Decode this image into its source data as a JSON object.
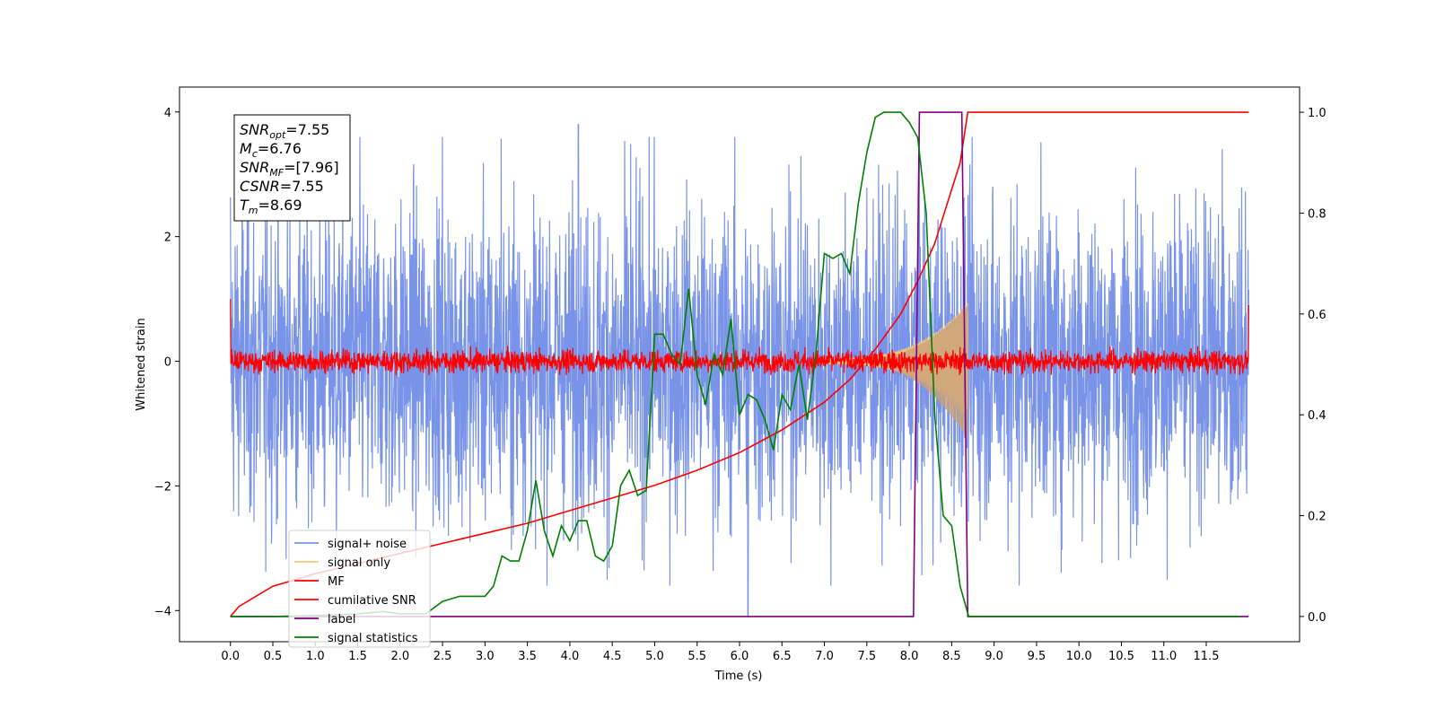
{
  "chart_data": {
    "type": "line",
    "xlabel": "Time (s)",
    "ylabel": "Whitened strain",
    "xlim": [
      -0.6,
      12.6
    ],
    "ylim": [
      -4.5,
      4.4
    ],
    "y2lim": [
      -0.05,
      1.05
    ],
    "x_ticks": [
      "0.0",
      "0.5",
      "1.0",
      "1.5",
      "2.0",
      "2.5",
      "3.0",
      "3.5",
      "4.0",
      "4.5",
      "5.0",
      "5.5",
      "6.0",
      "6.5",
      "7.0",
      "7.5",
      "8.0",
      "8.5",
      "9.0",
      "9.5",
      "10.0",
      "10.5",
      "11.0",
      "11.5"
    ],
    "y_ticks": [
      "4",
      "2",
      "0",
      "−2",
      "−4"
    ],
    "y2_ticks": [
      "1.0",
      "0.8",
      "0.6",
      "0.4",
      "0.2",
      "0.0"
    ],
    "legend": {
      "placement": "lower-left",
      "entries": [
        "signal+ noise",
        "signal only",
        "MF",
        "cumilative SNR",
        "label",
        "signal statistics"
      ]
    },
    "annotation": {
      "lines": [
        {
          "sym": "SNR",
          "sub": "opt",
          "val": "=7.55"
        },
        {
          "sym": "M",
          "sub": "c",
          "val": "=6.76"
        },
        {
          "sym": "SNR",
          "sub": "MF",
          "val": "=[7.96]"
        },
        {
          "sym": "CSNR",
          "sub": "",
          "val": "=7.55"
        },
        {
          "sym": "T",
          "sub": "m",
          "val": "=8.69"
        }
      ]
    },
    "series": [
      {
        "name": "signal+ noise",
        "axis": "left",
        "color": "#7893e8",
        "kind": "noise",
        "x_range": [
          0.0,
          12.0
        ],
        "typical_amplitude": 2.0,
        "peak": 3.8,
        "min": -4.1
      },
      {
        "name": "signal only",
        "axis": "left",
        "color": "#f5c77e",
        "kind": "chirp",
        "x_range": [
          7.0,
          8.69
        ],
        "peak": 0.9
      },
      {
        "name": "MF",
        "axis": "left",
        "color": "#ff0000",
        "kind": "noise",
        "x_range": [
          0.0,
          12.0
        ],
        "typical_amplitude": 0.2,
        "start": 1.0,
        "end": 0.9
      },
      {
        "name": "cumilative SNR",
        "axis": "right",
        "color": "#ff0000",
        "x": [
          0.0,
          0.1,
          0.3,
          0.5,
          1.0,
          1.5,
          2.0,
          2.5,
          3.0,
          3.5,
          4.0,
          4.5,
          5.0,
          5.5,
          6.0,
          6.5,
          7.0,
          7.3,
          7.6,
          7.9,
          8.1,
          8.3,
          8.45,
          8.6,
          8.69,
          9.0,
          10.0,
          11.0,
          12.0
        ],
        "y": [
          0.0,
          0.02,
          0.04,
          0.06,
          0.085,
          0.105,
          0.125,
          0.145,
          0.165,
          0.185,
          0.21,
          0.235,
          0.26,
          0.29,
          0.325,
          0.37,
          0.425,
          0.47,
          0.53,
          0.6,
          0.665,
          0.74,
          0.82,
          0.9,
          1.0,
          1.0,
          1.0,
          1.0,
          1.0
        ]
      },
      {
        "name": "label",
        "axis": "right",
        "color": "#800080",
        "x": [
          0.0,
          8.05,
          8.12,
          8.62,
          8.69,
          12.0
        ],
        "y": [
          0.0,
          0.0,
          1.0,
          1.0,
          0.0,
          0.0
        ]
      },
      {
        "name": "signal statistics",
        "axis": "right",
        "color": "#008000",
        "x": [
          0.0,
          0.5,
          1.0,
          1.5,
          1.8,
          2.0,
          2.3,
          2.5,
          2.7,
          3.0,
          3.1,
          3.2,
          3.3,
          3.4,
          3.5,
          3.6,
          3.7,
          3.8,
          3.9,
          4.0,
          4.1,
          4.2,
          4.3,
          4.4,
          4.5,
          4.6,
          4.7,
          4.8,
          4.9,
          5.0,
          5.1,
          5.2,
          5.3,
          5.4,
          5.5,
          5.6,
          5.7,
          5.8,
          5.9,
          6.0,
          6.1,
          6.2,
          6.3,
          6.4,
          6.5,
          6.6,
          6.7,
          6.8,
          6.9,
          7.0,
          7.1,
          7.2,
          7.3,
          7.4,
          7.5,
          7.6,
          7.7,
          7.8,
          7.9,
          8.0,
          8.1,
          8.2,
          8.3,
          8.4,
          8.5,
          8.6,
          8.7,
          9.0,
          10.0,
          11.0,
          11.9
        ],
        "y": [
          0.0,
          0.0,
          0.002,
          0.005,
          0.01,
          0.005,
          0.005,
          0.03,
          0.04,
          0.04,
          0.06,
          0.12,
          0.11,
          0.11,
          0.17,
          0.27,
          0.17,
          0.12,
          0.18,
          0.15,
          0.19,
          0.19,
          0.12,
          0.11,
          0.14,
          0.26,
          0.29,
          0.24,
          0.25,
          0.56,
          0.56,
          0.52,
          0.5,
          0.65,
          0.48,
          0.42,
          0.52,
          0.48,
          0.59,
          0.4,
          0.44,
          0.43,
          0.39,
          0.33,
          0.44,
          0.41,
          0.5,
          0.39,
          0.52,
          0.72,
          0.71,
          0.72,
          0.68,
          0.82,
          0.92,
          0.99,
          1.0,
          1.0,
          1.0,
          0.98,
          0.95,
          0.8,
          0.4,
          0.2,
          0.18,
          0.06,
          0.0,
          0.0,
          0.0,
          0.0,
          0.0
        ]
      }
    ]
  }
}
